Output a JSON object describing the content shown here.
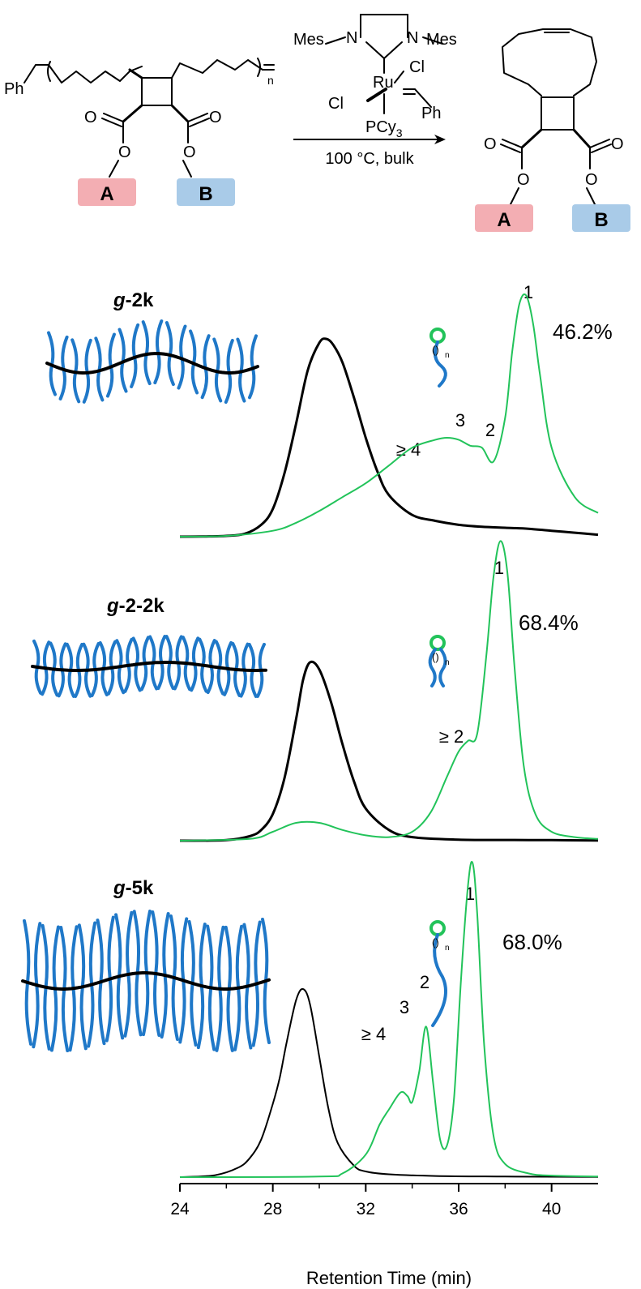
{
  "scheme": {
    "label_A": "A",
    "label_B": "B",
    "ph": "Ph",
    "n": "n",
    "mes_left": "Mes",
    "mes_right": "Mes",
    "n_left": "N",
    "n_right": "N",
    "cl_top": "Cl",
    "cl_left": "Cl",
    "ru": "Ru",
    "ph_cat": "Ph",
    "pcy3": "PCy",
    "pcy3_sub": "3",
    "conditions": "100 °C, bulk",
    "o_label": "O"
  },
  "colors": {
    "polymer": "#000000",
    "macrocycle": "#22c35a",
    "graft": "#1f78c8",
    "box_A": "#f3aeb3",
    "box_B": "#a9cbe8"
  },
  "panels": [
    {
      "name": "g-2k",
      "name_prefix": "g",
      "name_suffix": "-2k",
      "percent": "46.2%",
      "peak_labels": [
        "1",
        "2",
        "3",
        "≥ 4"
      ]
    },
    {
      "name": "g-2-2k",
      "name_prefix": "g",
      "name_suffix": "-2-2k",
      "percent": "68.4%",
      "peak_labels": [
        "1",
        "≥ 2"
      ]
    },
    {
      "name": "g-5k",
      "name_prefix": "g",
      "name_suffix": "-5k",
      "percent": "68.0%",
      "peak_labels": [
        "1",
        "2",
        "3",
        "≥ 4"
      ]
    }
  ],
  "chart_data": {
    "type": "line",
    "xlabel": "Retention Time (min)",
    "xlim": [
      24,
      42
    ],
    "xticks": [
      "24",
      "28",
      "32",
      "36",
      "40"
    ],
    "panels": [
      {
        "name": "g-2k",
        "series": [
          {
            "x": [
              24,
              25,
              26,
              26.8,
              27.5,
              28,
              28.5,
              29,
              29.5,
              30,
              30.3,
              30.6,
              31,
              31.5,
              32,
              32.5,
              33,
              34,
              35,
              36,
              37,
              38,
              39,
              40,
              41,
              42
            ],
            "y": [
              0,
              0.001,
              0.004,
              0.015,
              0.06,
              0.14,
              0.32,
              0.57,
              0.84,
              0.98,
              1.0,
              0.97,
              0.88,
              0.7,
              0.5,
              0.33,
              0.21,
              0.11,
              0.08,
              0.06,
              0.05,
              0.045,
              0.04,
              0.03,
              0.02,
              0.01
            ]
          },
          {
            "x": [
              24,
              26,
              28,
              29,
              30,
              31,
              32,
              33,
              34,
              35,
              35.5,
              36,
              36.5,
              37,
              37.5,
              38,
              38.3,
              38.6,
              38.9,
              39.2,
              39.5,
              40,
              41,
              42
            ],
            "y": [
              0,
              0.004,
              0.03,
              0.07,
              0.13,
              0.2,
              0.27,
              0.36,
              0.45,
              0.49,
              0.5,
              0.49,
              0.46,
              0.45,
              0.38,
              0.6,
              0.93,
              1.17,
              1.22,
              1.08,
              0.82,
              0.45,
              0.2,
              0.12
            ]
          }
        ]
      },
      {
        "name": "g-2-2k",
        "series": [
          {
            "x": [
              24,
              26,
              27,
              27.5,
              28,
              28.5,
              29,
              29.3,
              29.6,
              30,
              30.5,
              31,
              31.5,
              32,
              33,
              34,
              36,
              38,
              40,
              42
            ],
            "y": [
              0,
              0.003,
              0.025,
              0.06,
              0.15,
              0.35,
              0.68,
              0.9,
              1.0,
              0.96,
              0.78,
              0.54,
              0.33,
              0.18,
              0.06,
              0.02,
              0.006,
              0.004,
              0.003,
              0.001
            ]
          },
          {
            "x": [
              24,
              27,
              28,
              29,
              30,
              31,
              32,
              33,
              34,
              34.8,
              35.5,
              36,
              36.4,
              36.8,
              37.2,
              37.5,
              37.8,
              38.1,
              38.4,
              38.8,
              39.3,
              40,
              41,
              42
            ],
            "y": [
              0,
              0.01,
              0.05,
              0.1,
              0.1,
              0.06,
              0.03,
              0.02,
              0.05,
              0.16,
              0.36,
              0.5,
              0.56,
              0.6,
              1.05,
              1.48,
              1.68,
              1.5,
              0.98,
              0.42,
              0.15,
              0.05,
              0.02,
              0.01
            ]
          }
        ]
      },
      {
        "name": "g-5k",
        "series": [
          {
            "x": [
              24,
              25.5,
              26.5,
              27,
              27.5,
              28,
              28.3,
              28.6,
              29,
              29.3,
              29.6,
              30,
              30.4,
              30.8,
              31.5,
              32,
              33,
              35,
              38,
              42
            ],
            "y": [
              0,
              0.01,
              0.05,
              0.1,
              0.2,
              0.39,
              0.53,
              0.72,
              0.94,
              1.0,
              0.92,
              0.64,
              0.36,
              0.18,
              0.06,
              0.03,
              0.015,
              0.006,
              0.003,
              0.001
            ]
          },
          {
            "x": [
              24,
              30,
              31,
              32,
              32.6,
              33,
              33.5,
              33.8,
              34,
              34.3,
              34.6,
              34.9,
              35.2,
              35.5,
              35.8,
              36.1,
              36.4,
              36.6,
              36.8,
              37.1,
              37.5,
              38,
              39,
              40,
              42
            ],
            "y": [
              0,
              0.003,
              0.02,
              0.12,
              0.28,
              0.36,
              0.45,
              0.43,
              0.4,
              0.56,
              0.8,
              0.5,
              0.2,
              0.17,
              0.42,
              1.05,
              1.55,
              1.67,
              1.4,
              0.7,
              0.22,
              0.07,
              0.02,
              0.008,
              0.003
            ]
          }
        ]
      }
    ]
  }
}
